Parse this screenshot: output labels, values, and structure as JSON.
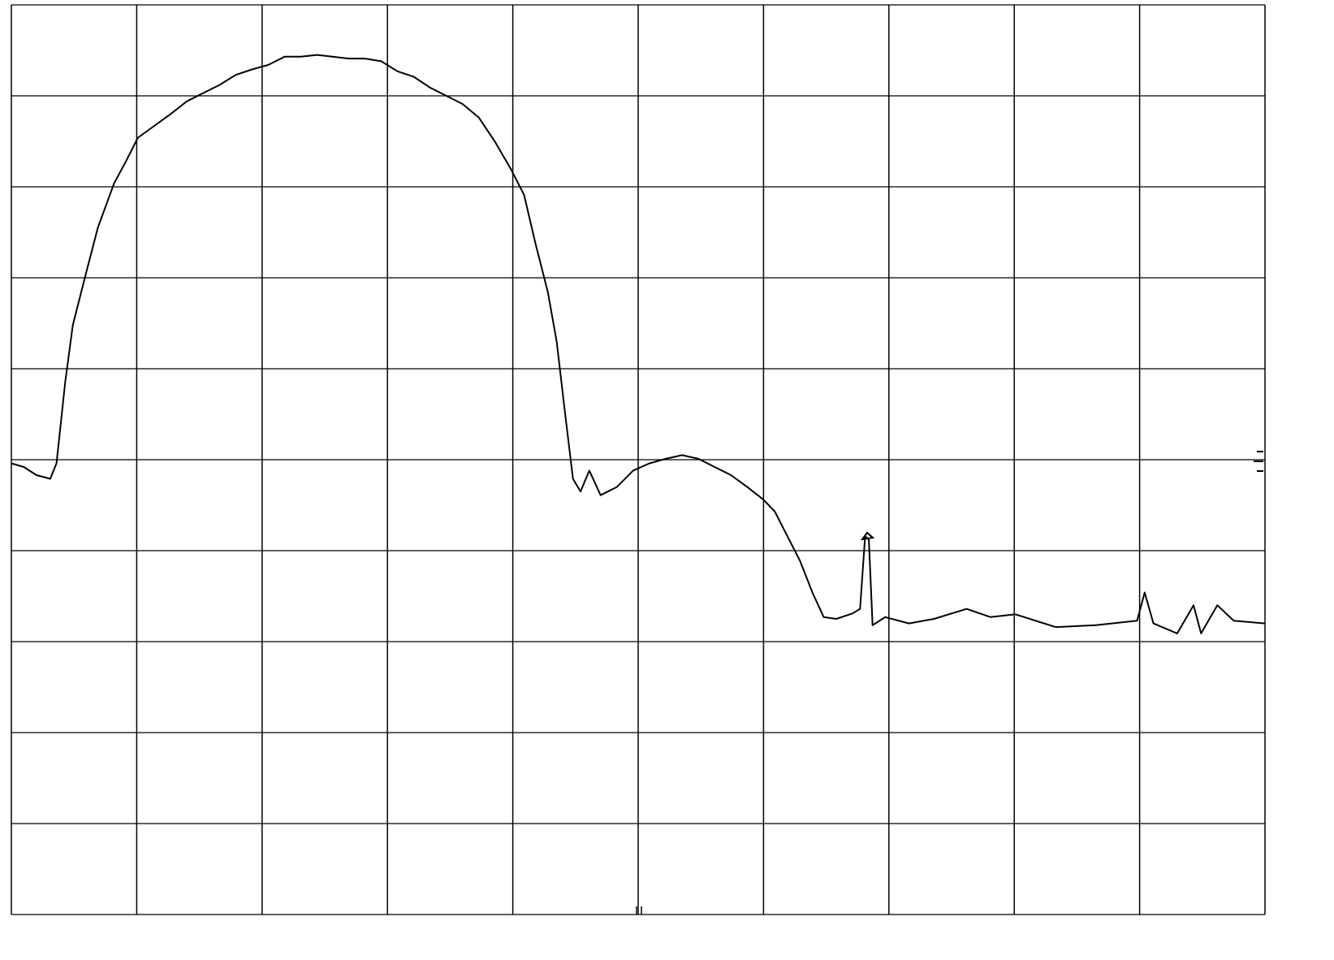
{
  "chart_data": {
    "type": "line",
    "x": [
      0,
      0.1,
      0.2,
      0.31,
      0.36,
      0.43,
      0.49,
      0.59,
      0.69,
      0.82,
      0.91,
      1.01,
      1.14,
      1.27,
      1.4,
      1.53,
      1.66,
      1.79,
      1.92,
      2.05,
      2.18,
      2.31,
      2.44,
      2.56,
      2.69,
      2.82,
      2.95,
      3.08,
      3.21,
      3.34,
      3.47,
      3.6,
      3.73,
      3.86,
      3.99,
      4.09,
      4.18,
      4.28,
      4.35,
      4.41,
      4.48,
      4.54,
      4.61,
      4.7,
      4.83,
      4.96,
      5.09,
      5.22,
      5.35,
      5.48,
      5.61,
      5.74,
      5.87,
      6.0,
      6.09,
      6.19,
      6.29,
      6.39,
      6.48,
      6.58,
      6.71,
      6.77,
      6.81,
      6.84,
      6.87,
      6.97,
      7.16,
      7.36,
      7.62,
      7.81,
      8.01,
      8.33,
      8.65,
      8.98,
      9.04,
      9.11,
      9.3,
      9.43,
      9.49,
      9.62,
      9.75,
      10
    ],
    "values": [
      4.96,
      4.92,
      4.83,
      4.79,
      4.96,
      5.86,
      6.48,
      7.02,
      7.55,
      8.04,
      8.27,
      8.54,
      8.67,
      8.8,
      8.94,
      9.03,
      9.12,
      9.23,
      9.29,
      9.34,
      9.43,
      9.43,
      9.45,
      9.43,
      9.41,
      9.41,
      9.38,
      9.27,
      9.21,
      9.09,
      9.0,
      8.91,
      8.76,
      8.49,
      8.18,
      7.91,
      7.38,
      6.84,
      6.3,
      5.59,
      4.79,
      4.65,
      4.88,
      4.61,
      4.7,
      4.88,
      4.96,
      5.01,
      5.05,
      5.01,
      4.92,
      4.83,
      4.7,
      4.56,
      4.43,
      4.16,
      3.89,
      3.54,
      3.27,
      3.25,
      3.31,
      3.36,
      4.16,
      4.12,
      3.18,
      3.27,
      3.2,
      3.25,
      3.36,
      3.27,
      3.3,
      3.16,
      3.18,
      3.23,
      3.54,
      3.2,
      3.09,
      3.4,
      3.09,
      3.4,
      3.23,
      3.2
    ],
    "color": "#000000",
    "xlim": [
      0,
      10
    ],
    "ylim": [
      0,
      10
    ],
    "xticks": [
      0,
      1,
      2,
      3,
      4,
      5,
      6,
      7,
      8,
      9,
      10
    ],
    "yticks": [
      0,
      1,
      2,
      3,
      4,
      5,
      6,
      7,
      8,
      9,
      10
    ],
    "grid": true
  }
}
